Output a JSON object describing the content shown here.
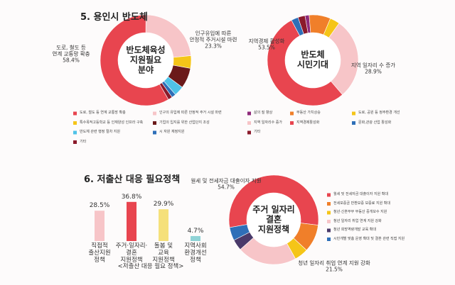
{
  "sections": [
    {
      "title": "5. 용인시 반도체"
    },
    {
      "title": "6. 저출산 대응 필요정책"
    }
  ],
  "chart_data": [
    {
      "type": "donut",
      "center_label": "반도체육성\n지원필요\n분야",
      "categories": [
        "도로, 철도 등 연계 교통망 확충",
        "인구의 유입에 따른 안정적 주거 시설 마련",
        "특수목적고등학교 등 인재양성 인프라 구축",
        "기업의 입지를 위한 산업단지 조성",
        "반도체 관련 행정 절차 지원",
        "시 자원 재정지원",
        "기타"
      ],
      "values": [
        58.4,
        23.3,
        4.5,
        7.3,
        3.5,
        1.5,
        1.5
      ],
      "value_labels": [
        "58.4%",
        "23.3%",
        null,
        null,
        null,
        null,
        null
      ],
      "callouts": [
        "도로, 철도 등\n연계 교통망 확충",
        "인구유입에 따른\n안정적 주거시설 마련",
        null,
        null,
        null,
        null,
        null
      ],
      "colors": [
        "#e8454f",
        "#f7c5c8",
        "#f5c518",
        "#6b1a1a",
        "#4fc3e8",
        "#2e6fb8",
        "#8b1a2b"
      ]
    },
    {
      "type": "donut",
      "center_label": "반도체\n시민기대",
      "categories": [
        "삶의 질 향상",
        "부동산 가치상승",
        "도로, 공원 등 정주환경 개선",
        "지역 일자리수 증가",
        "지역경제활성화",
        "문화,관광 산업 활성화",
        "기타"
      ],
      "values": [
        1.5,
        7.6,
        3.5,
        28.9,
        53.5,
        2.5,
        2.5
      ],
      "value_labels": [
        null,
        null,
        null,
        "28.9%",
        "53.5%",
        null,
        null
      ],
      "callouts": [
        null,
        null,
        null,
        "지역 일자리 수 증가",
        "지역경제 활성화",
        null,
        null
      ],
      "colors": [
        "#8e2a7a",
        "#f07f2a",
        "#f5c518",
        "#f7c5c8",
        "#e8454f",
        "#2e6fb8",
        "#8b1a2b"
      ]
    },
    {
      "type": "bar",
      "caption": "<저출산 대응 필요 정책>",
      "categories": [
        "직접적\n출산지원\n정책",
        "주거·일자리·\n결혼\n지원정책",
        "돌봄 및\n교육\n지원정책",
        "지역사회\n환경개선\n정책"
      ],
      "values": [
        28.5,
        36.8,
        29.9,
        4.7
      ],
      "value_labels": [
        "28.5%",
        "36.8%",
        "29.9%",
        "4.7%"
      ],
      "colors": [
        "#f7c5c8",
        "#e8454f",
        "#f5e07a",
        "#8fd3d6"
      ]
    },
    {
      "type": "donut",
      "center_label": "주거 일자리\n결혼\n지원정책",
      "categories": [
        "월세 및 전세자금 대출이자 지원 확대",
        "전세보증금 반환보증 보증료 지원 확대",
        "청년·신혼부부 부동산 중개보수 지원",
        "청년 일자리 취업 연계 지원 강화",
        "청년 희망역량개발 교육 확대",
        "시민개별 맞춤 운영 확대 및 결혼 관련 직접 지원"
      ],
      "values": [
        54.7,
        10,
        5,
        21.5,
        4,
        4.8
      ],
      "value_labels": [
        "54.7%",
        null,
        null,
        "21.5%",
        null,
        null
      ],
      "callouts": [
        "월세 및 전세자금 대출이자 지원",
        null,
        null,
        "청년 일자리 취업 연계 지원 강화",
        null,
        null
      ],
      "colors": [
        "#e8454f",
        "#f07f2a",
        "#f5c518",
        "#f7c5c8",
        "#4a3a6a",
        "#2e6fb8"
      ]
    }
  ]
}
